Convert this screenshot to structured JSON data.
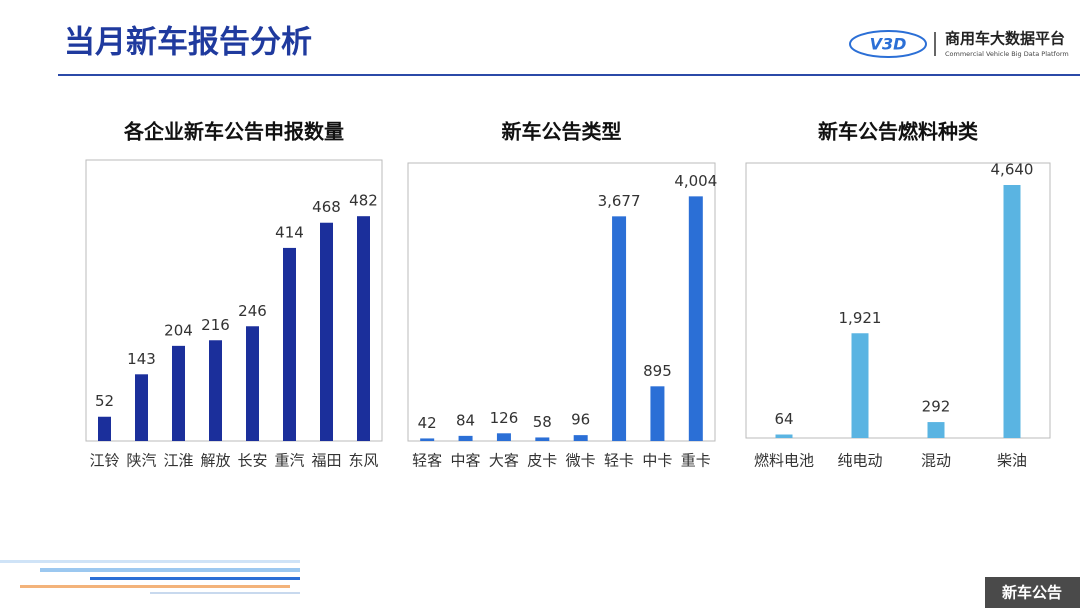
{
  "header": {
    "title": "当月新车报告分析"
  },
  "logo": {
    "mark": "V3D",
    "name": "商用车大数据平台",
    "subtitle": "Commercial Vehicle Big Data Platform"
  },
  "footer": {
    "label": "新车公告"
  },
  "chart_data": [
    {
      "type": "bar",
      "title": "各企业新车公告申报数量",
      "color": "#1b2f9b",
      "categories": [
        "江铃",
        "陕汽",
        "江淮",
        "解放",
        "长安",
        "重汽",
        "福田",
        "东风"
      ],
      "values": [
        52,
        143,
        204,
        216,
        246,
        414,
        468,
        482
      ]
    },
    {
      "type": "bar",
      "title": "新车公告类型",
      "color": "#2b6fd6",
      "categories": [
        "轻客",
        "中客",
        "大客",
        "皮卡",
        "微卡",
        "轻卡",
        "中卡",
        "重卡"
      ],
      "values": [
        42,
        84,
        126,
        58,
        96,
        3677,
        895,
        4004
      ],
      "value_labels": [
        "42",
        "84",
        "126",
        "58",
        "96",
        "3,677",
        "895",
        "4,004"
      ]
    },
    {
      "type": "bar",
      "title": "新车公告燃料种类",
      "color": "#5ab4e2",
      "categories": [
        "燃料电池",
        "纯电动",
        "混动",
        "柴油"
      ],
      "values": [
        64,
        1921,
        292,
        4640
      ],
      "value_labels": [
        "64",
        "1,921",
        "292",
        "4,640"
      ]
    }
  ]
}
